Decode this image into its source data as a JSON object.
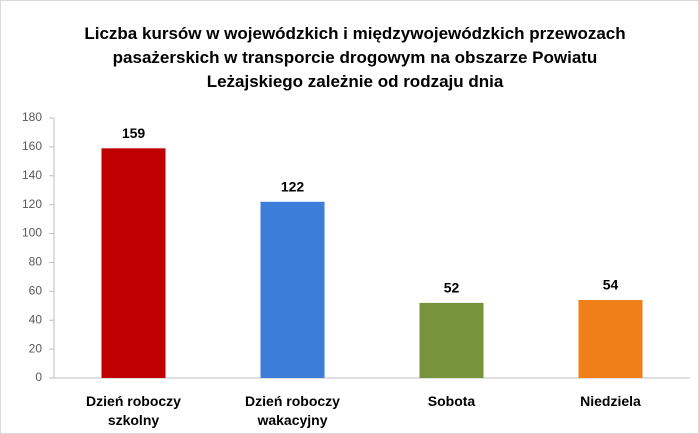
{
  "chart_data": {
    "type": "bar",
    "title": "Liczba kursów w wojewódzkich i międzywojewódzkich przewozach pasażerskich w transporcie drogowym na obszarze Powiatu Leżajskiego zależnie od rodzaju dnia",
    "categories": [
      "Dzień roboczy szkolny",
      "Dzień roboczy wakacyjny",
      "Sobota",
      "Niedziela"
    ],
    "values": [
      159,
      122,
      52,
      54
    ],
    "colors": [
      "#c00000",
      "#3b7dd8",
      "#77933c",
      "#f07f1a"
    ],
    "ylim": [
      0,
      180
    ],
    "yticks": [
      0,
      20,
      40,
      60,
      80,
      100,
      120,
      140,
      160,
      180
    ],
    "grid": false
  }
}
